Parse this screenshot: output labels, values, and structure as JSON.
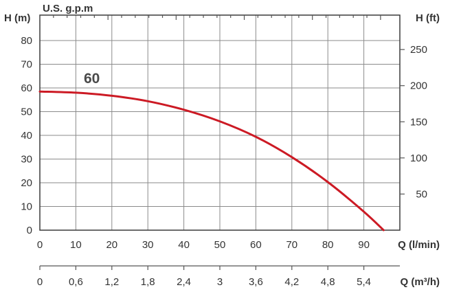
{
  "chart_data": {
    "type": "line",
    "axes": {
      "left_title": "H (m)",
      "right_title": "H (ft)",
      "top_title": "U.S. g.p.m",
      "bottom_title": "Q (l/min)",
      "bottom2_title": "Q (m³/h)",
      "y_ticks": [
        "0",
        "10",
        "20",
        "30",
        "40",
        "50",
        "60",
        "70",
        "80"
      ],
      "ft_ticks": [
        "50",
        "100",
        "150",
        "200",
        "250"
      ],
      "x_ticks": [
        "0",
        "10",
        "20",
        "30",
        "40",
        "50",
        "60",
        "70",
        "80",
        "90"
      ],
      "x2_ticks": [
        "0",
        "0,6",
        "1,2",
        "1,8",
        "2,4",
        "3",
        "3,6",
        "4,2",
        "4,8",
        "5,4"
      ],
      "ylim": [
        0,
        80
      ],
      "xlim": [
        0,
        100
      ],
      "grid": true
    },
    "series": [
      {
        "name": "60",
        "color": "#cc1a24",
        "x": [
          0,
          10,
          20,
          30,
          40,
          50,
          60,
          70,
          80,
          90,
          95.5
        ],
        "y": [
          58.5,
          58,
          56.7,
          54.4,
          50.8,
          45.9,
          39.4,
          30.8,
          20.3,
          7.8,
          0
        ]
      }
    ]
  }
}
